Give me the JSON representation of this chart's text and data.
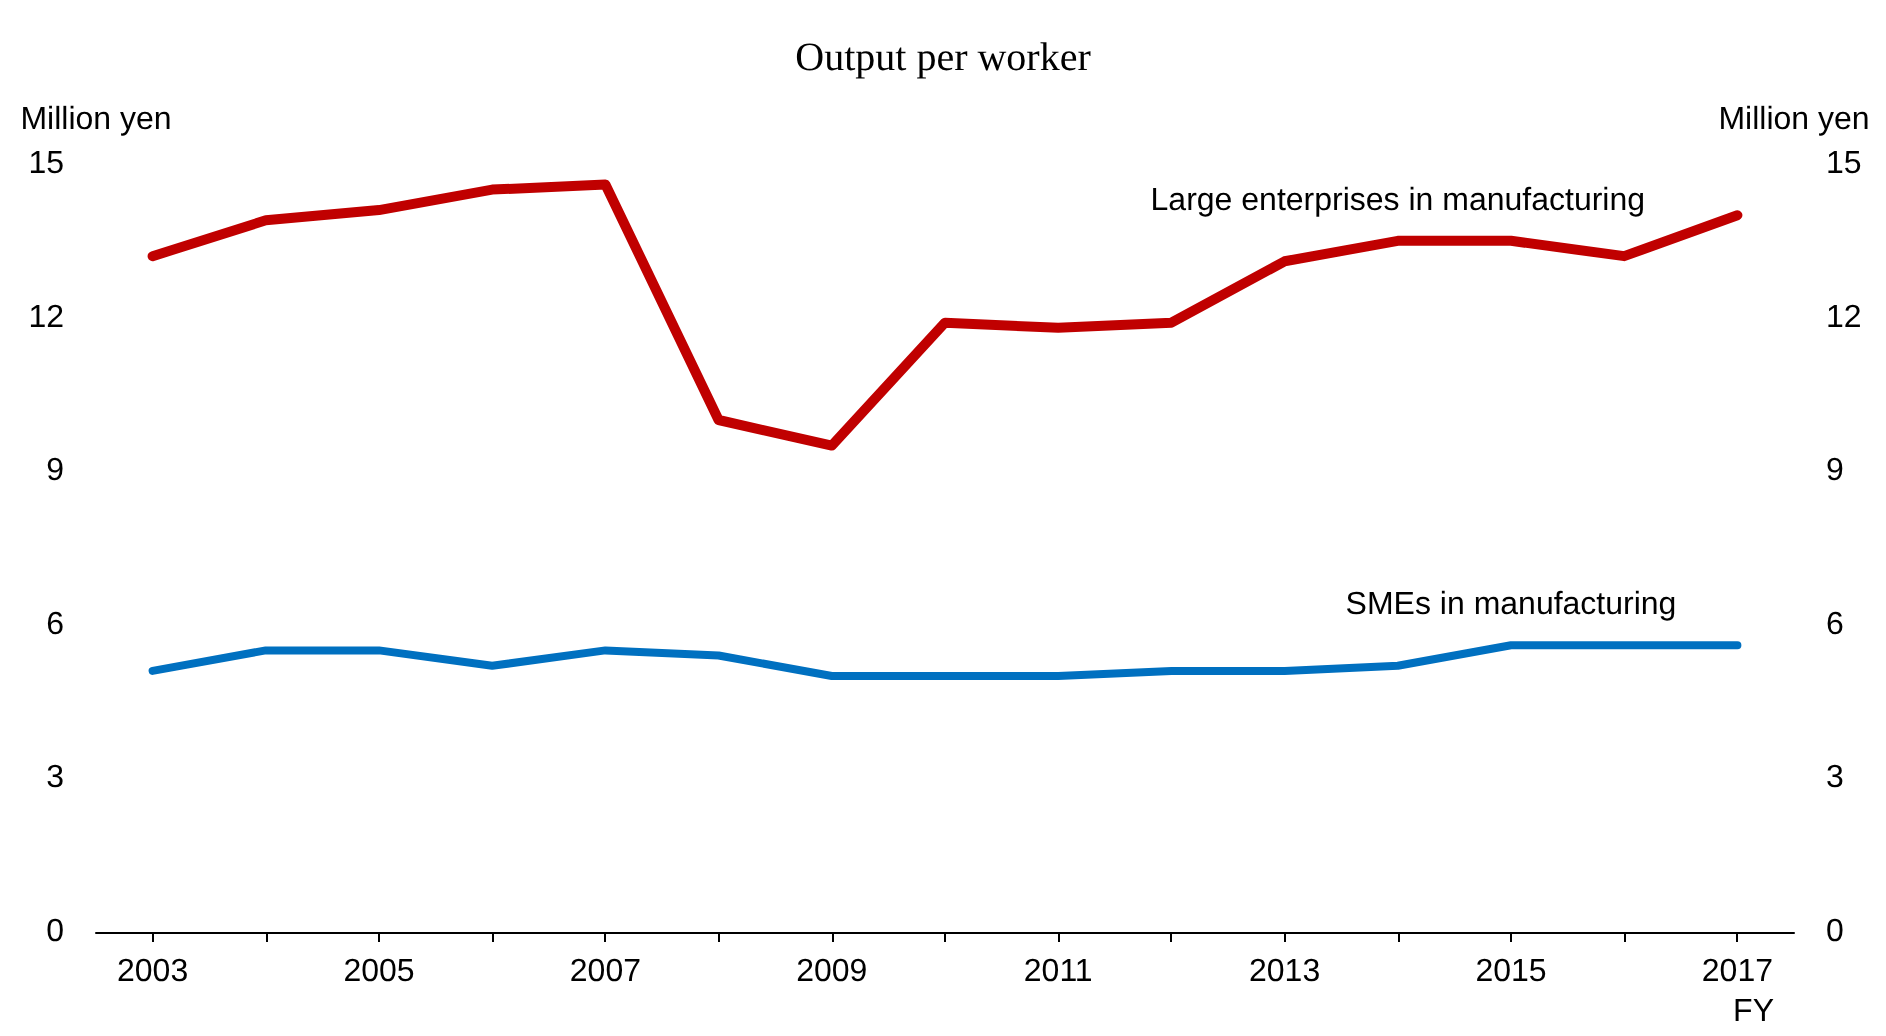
{
  "chart_data": {
    "type": "line",
    "title": "Output per worker",
    "xlabel": "FY",
    "ylabel": "Million yen",
    "y2label": "Million yen",
    "categories": [
      "2003",
      null,
      "2005",
      null,
      "2007",
      null,
      "2009",
      null,
      "2011",
      null,
      "2013",
      null,
      "2015",
      null,
      "2017"
    ],
    "series": [
      {
        "name": "Large enterprises in manufacturing",
        "color": "#c00000",
        "values": [
          13.2,
          13.9,
          14.1,
          14.5,
          14.6,
          10.0,
          9.5,
          11.9,
          11.8,
          11.9,
          13.1,
          13.5,
          13.5,
          13.2,
          14.0
        ]
      },
      {
        "name": "SMEs in manufacturing",
        "color": "#0070c0",
        "values": [
          5.1,
          5.5,
          5.5,
          5.2,
          5.5,
          5.4,
          5.0,
          5.0,
          5.0,
          5.1,
          5.1,
          5.2,
          5.6,
          5.6,
          5.6
        ]
      }
    ],
    "ylim": [
      0,
      15
    ],
    "yticks": [
      0,
      3,
      6,
      9,
      12,
      15
    ],
    "y2lim": [
      0,
      15
    ],
    "y2ticks": [
      0,
      3,
      6,
      9,
      12,
      15
    ],
    "grid": false,
    "legend": false,
    "marker": "none",
    "line_style": "solid"
  }
}
